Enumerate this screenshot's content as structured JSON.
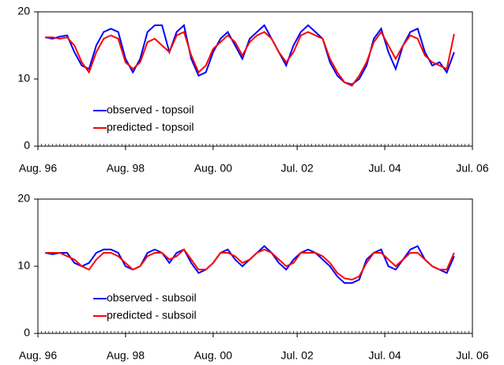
{
  "chart_data": [
    {
      "type": "line",
      "x": [
        "1996-10",
        "1996-12",
        "1997-02",
        "1997-04",
        "1997-06",
        "1997-08",
        "1997-10",
        "1997-12",
        "1998-02",
        "1998-04",
        "1998-06",
        "1998-08",
        "1998-10",
        "1998-12",
        "1999-02",
        "1999-04",
        "1999-06",
        "1999-08",
        "1999-10",
        "1999-12",
        "2000-02",
        "2000-04",
        "2000-06",
        "2000-08",
        "2000-10",
        "2000-12",
        "2001-02",
        "2001-04",
        "2001-06",
        "2001-08",
        "2001-10",
        "2001-12",
        "2002-02",
        "2002-04",
        "2002-06",
        "2002-08",
        "2002-10",
        "2002-12",
        "2003-02",
        "2003-04",
        "2003-06",
        "2003-08",
        "2003-10",
        "2003-12",
        "2004-02",
        "2004-04",
        "2004-06",
        "2004-08",
        "2004-10",
        "2004-12",
        "2005-02",
        "2005-04",
        "2005-06",
        "2005-08",
        "2005-10",
        "2005-12",
        "2006-02"
      ],
      "series": [
        {
          "name": "observed - topsoil",
          "color": "#0000ff",
          "values": [
            16.2,
            16,
            16.3,
            16.5,
            14,
            12,
            11.5,
            15,
            17,
            17.5,
            17,
            13,
            11,
            13,
            17,
            18,
            18,
            14,
            17,
            18,
            13,
            10.5,
            11,
            14,
            16,
            17,
            15,
            13,
            16,
            17,
            18,
            16,
            14,
            12,
            15,
            17,
            18,
            17,
            16,
            12.5,
            10.5,
            9.5,
            9.2,
            10,
            12,
            16,
            17.5,
            14,
            11.5,
            15,
            17,
            17.5,
            14,
            12,
            12.5,
            11,
            14
          ]
        },
        {
          "name": "predicted - topsoil",
          "color": "#ff0000",
          "values": [
            16.2,
            16.2,
            16,
            16.2,
            15,
            12.5,
            11,
            14,
            16,
            16.5,
            16,
            12.5,
            11.5,
            12.5,
            15.5,
            16,
            15,
            14,
            16.5,
            17,
            13.5,
            11,
            12,
            14.5,
            15.5,
            16.5,
            15.5,
            13.5,
            15.5,
            16.5,
            17,
            16,
            14,
            12.5,
            14,
            16.5,
            17,
            16.5,
            16,
            13,
            11,
            9.5,
            9,
            10.5,
            12.5,
            15.5,
            17,
            15,
            13,
            15,
            16.5,
            16,
            13.5,
            12.5,
            12,
            11.5,
            16.7
          ]
        }
      ],
      "xlim": [
        "1996-08",
        "2006-07"
      ],
      "xticks": [
        {
          "value": "1996-08",
          "label": "Aug. 96"
        },
        {
          "value": "1998-08",
          "label": "Aug. 98"
        },
        {
          "value": "2000-08",
          "label": "Aug. 00"
        },
        {
          "value": "2002-07",
          "label": "Jul. 02"
        },
        {
          "value": "2004-07",
          "label": "Jul. 04"
        },
        {
          "value": "2006-07",
          "label": "Jul. 06"
        }
      ],
      "ylim": [
        0,
        20
      ],
      "yticks": [
        0,
        10,
        20
      ]
    },
    {
      "type": "line",
      "x": [
        "1996-10",
        "1996-12",
        "1997-02",
        "1997-04",
        "1997-06",
        "1997-08",
        "1997-10",
        "1997-12",
        "1998-02",
        "1998-04",
        "1998-06",
        "1998-08",
        "1998-10",
        "1998-12",
        "1999-02",
        "1999-04",
        "1999-06",
        "1999-08",
        "1999-10",
        "1999-12",
        "2000-02",
        "2000-04",
        "2000-06",
        "2000-08",
        "2000-10",
        "2000-12",
        "2001-02",
        "2001-04",
        "2001-06",
        "2001-08",
        "2001-10",
        "2001-12",
        "2002-02",
        "2002-04",
        "2002-06",
        "2002-08",
        "2002-10",
        "2002-12",
        "2003-02",
        "2003-04",
        "2003-06",
        "2003-08",
        "2003-10",
        "2003-12",
        "2004-02",
        "2004-04",
        "2004-06",
        "2004-08",
        "2004-10",
        "2004-12",
        "2005-02",
        "2005-04",
        "2005-06",
        "2005-08",
        "2005-10",
        "2005-12",
        "2006-02"
      ],
      "series": [
        {
          "name": "observed - subsoil",
          "color": "#0000ff",
          "values": [
            12,
            11.8,
            12,
            12,
            10.5,
            10,
            10.5,
            12,
            12.5,
            12.5,
            12,
            10,
            9.5,
            10,
            12,
            12.5,
            12,
            10.5,
            12,
            12.5,
            10.5,
            9,
            9.5,
            10.5,
            12,
            12.5,
            11,
            10,
            11,
            12,
            13,
            12,
            10.5,
            9.5,
            11,
            12,
            12.5,
            12,
            11,
            10,
            8.5,
            7.5,
            7.5,
            8,
            11,
            12,
            12.5,
            10,
            9.5,
            11,
            12.5,
            13,
            11,
            10,
            9.5,
            9,
            11.5
          ]
        },
        {
          "name": "predicted - subsoil",
          "color": "#ff0000",
          "values": [
            12,
            12,
            12,
            11.5,
            11,
            10,
            9.5,
            11,
            12,
            12,
            11.5,
            10.5,
            9.5,
            10,
            11.5,
            12,
            12,
            11,
            11.5,
            12.5,
            11,
            9.5,
            9.5,
            10.5,
            12,
            12,
            11.5,
            10.5,
            11,
            12,
            12.5,
            12,
            11,
            10,
            10.5,
            12,
            12,
            12,
            11.5,
            10.5,
            9,
            8.2,
            8,
            8.5,
            10.5,
            12,
            12,
            11,
            10,
            11,
            12,
            12,
            11,
            10,
            9.5,
            9.5,
            12
          ]
        }
      ],
      "xlim": [
        "1996-08",
        "2006-07"
      ],
      "xticks": [
        {
          "value": "1996-08",
          "label": "Aug. 96"
        },
        {
          "value": "1998-08",
          "label": "Aug. 98"
        },
        {
          "value": "2000-08",
          "label": "Aug. 00"
        },
        {
          "value": "2002-07",
          "label": "Jul. 02"
        },
        {
          "value": "2004-07",
          "label": "Jul. 04"
        },
        {
          "value": "2006-07",
          "label": "Jul. 06"
        }
      ],
      "ylim": [
        0,
        20
      ],
      "yticks": [
        0,
        10,
        20
      ]
    }
  ]
}
